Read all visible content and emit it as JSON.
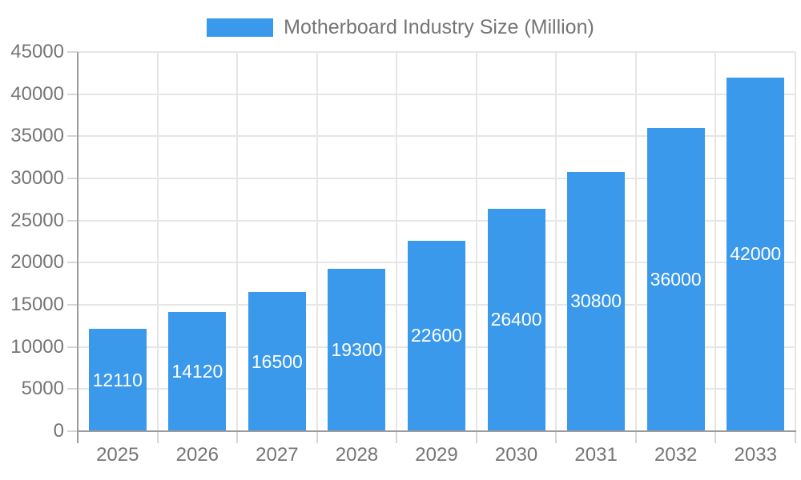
{
  "chart_data": {
    "type": "bar",
    "legend": "Motherboard Industry Size (Million)",
    "legend_position": "top",
    "categories": [
      "2025",
      "2026",
      "2027",
      "2028",
      "2029",
      "2030",
      "2031",
      "2032",
      "2033"
    ],
    "values": [
      12110,
      14120,
      16500,
      19300,
      22600,
      26400,
      30800,
      36000,
      42000
    ],
    "ylim": [
      0,
      45000
    ],
    "ytick_step": 5000,
    "ytick_labels": [
      "45000",
      "40000",
      "35000",
      "30000",
      "25000",
      "20000",
      "15000",
      "10000",
      "5000",
      "0"
    ],
    "xlabel": "",
    "ylabel": "",
    "grid": true,
    "bar_color": "#3b99ec",
    "grid_color": "#e6e6e6",
    "axis_line_color": "#9b9b9b",
    "axis_text_color": "#757575",
    "value_label_color": "#ffffff"
  }
}
